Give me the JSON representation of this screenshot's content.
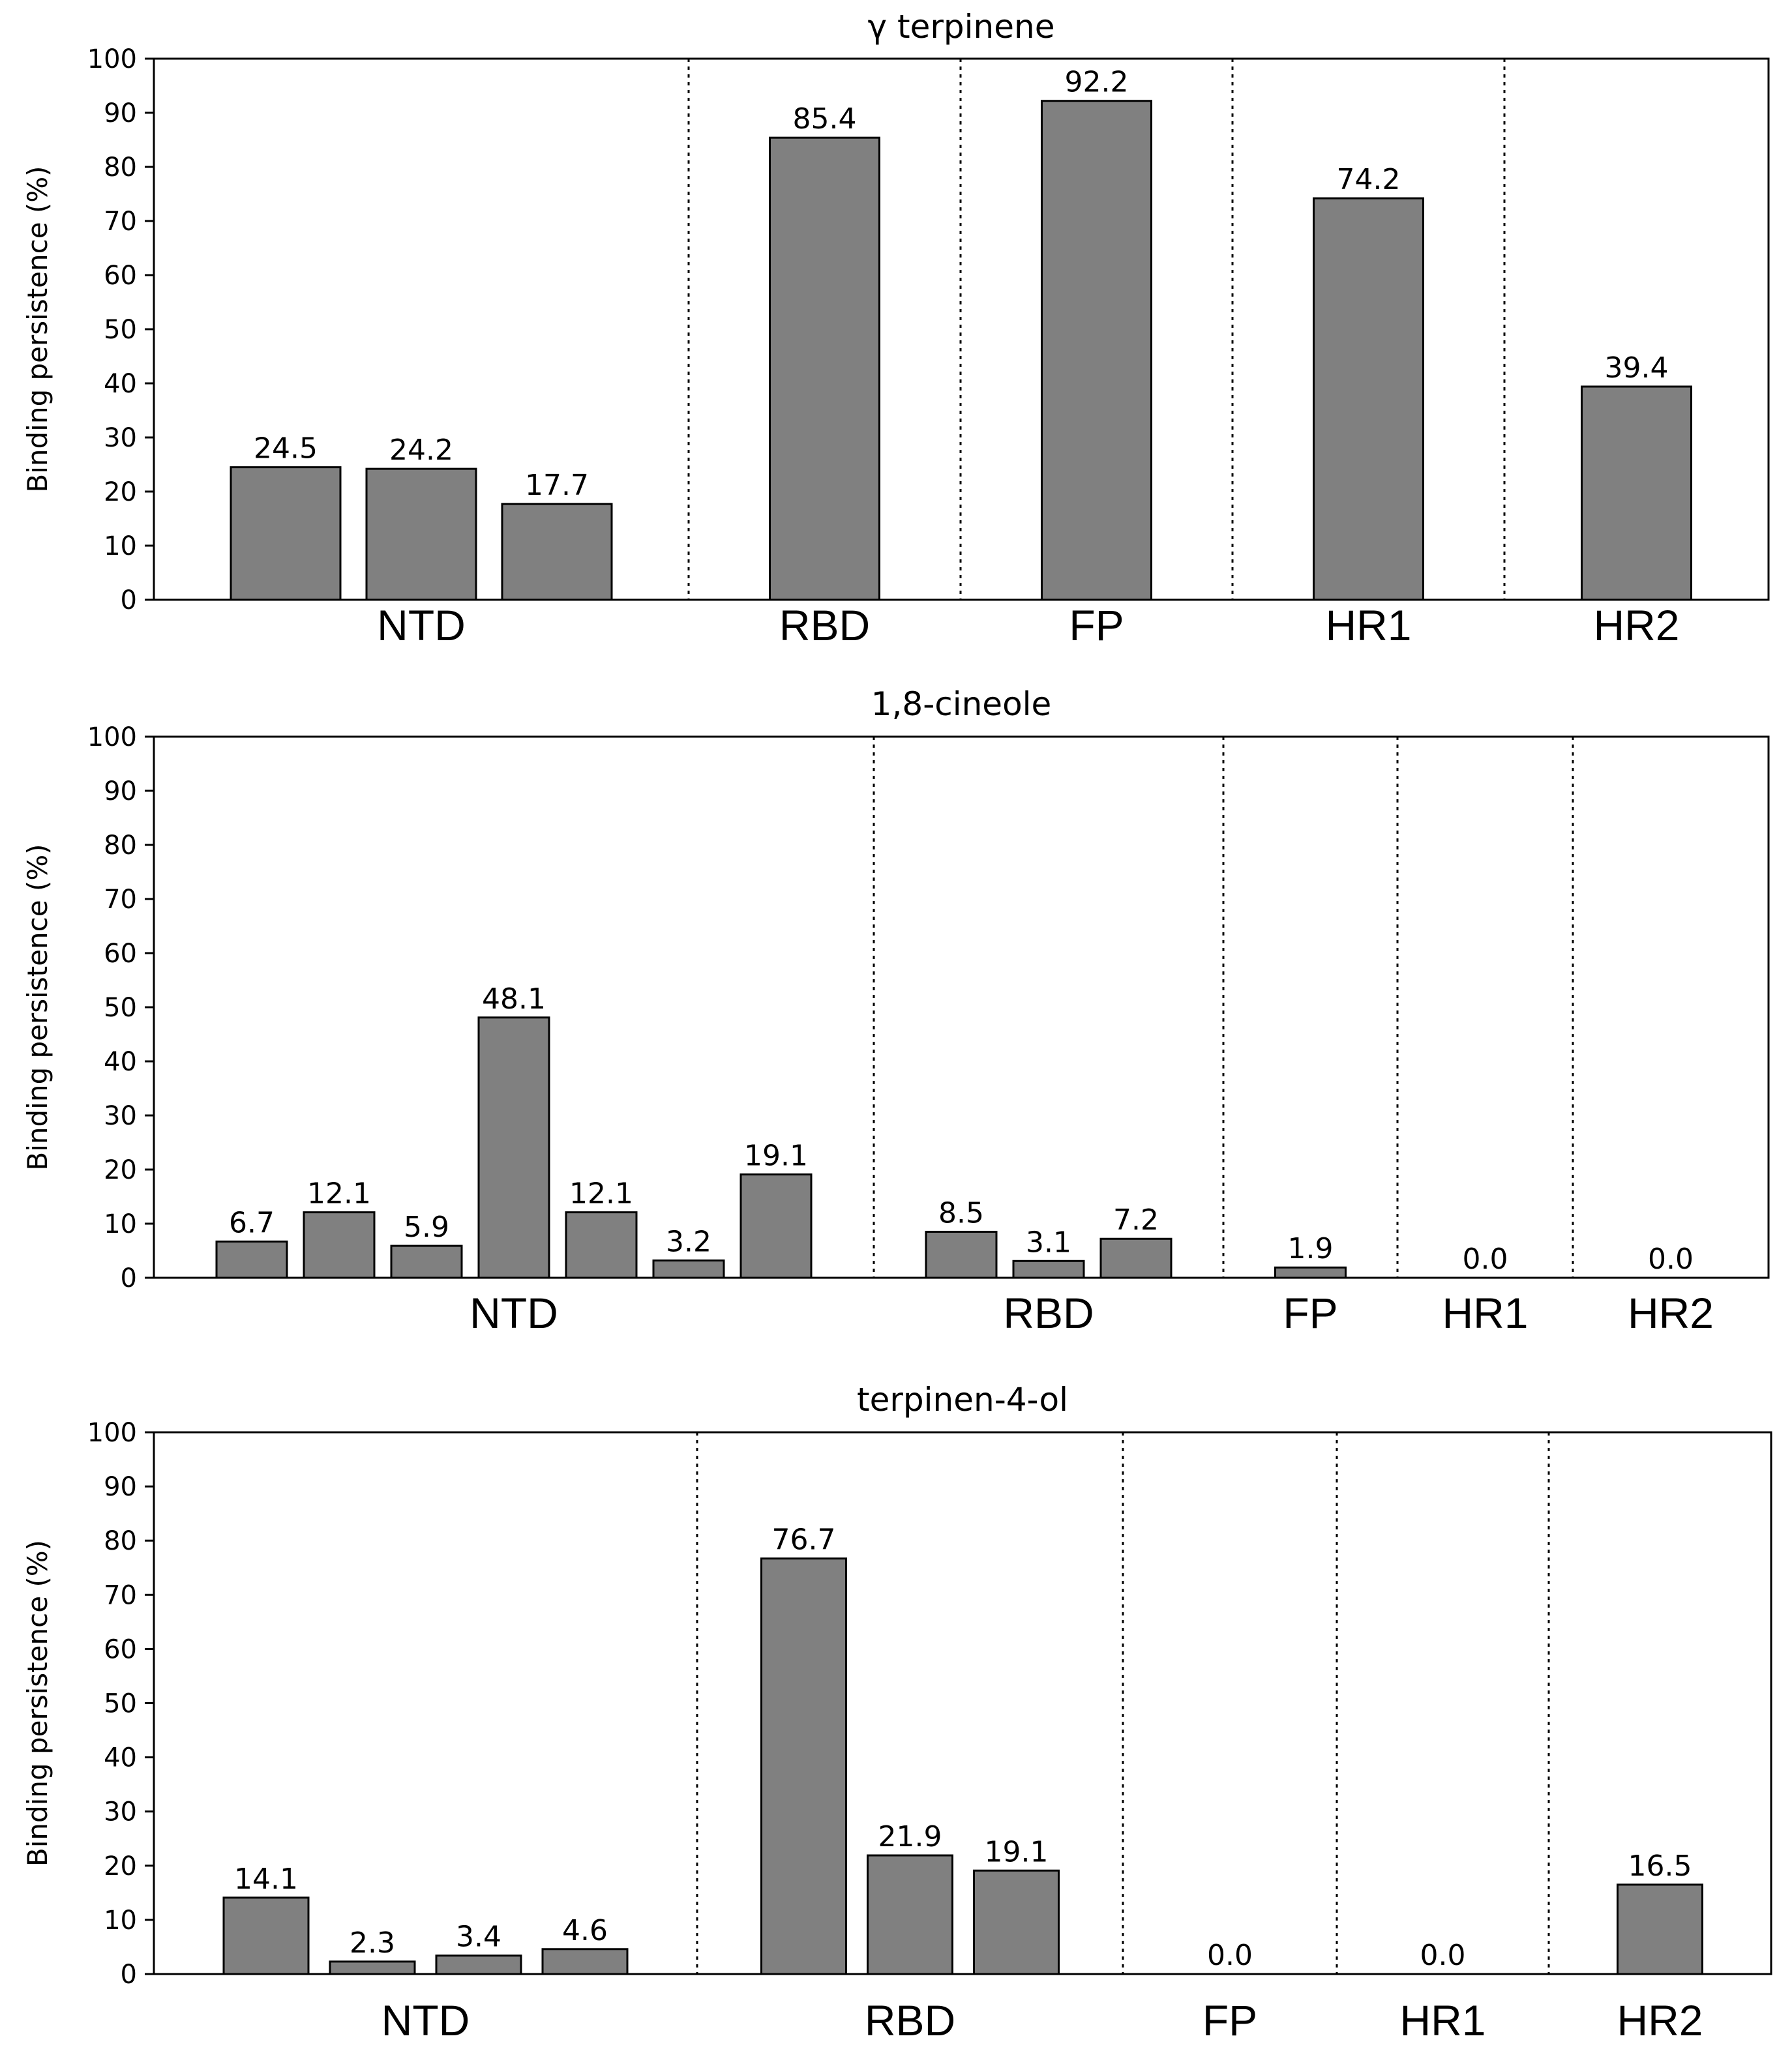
{
  "chart_data": [
    {
      "type": "bar",
      "title": "γ terpinene",
      "ylabel": "Binding persistence (%)",
      "xlabel": "",
      "ylim": [
        0,
        100
      ],
      "yticks": [
        0,
        10,
        20,
        30,
        40,
        50,
        60,
        70,
        80,
        90,
        100
      ],
      "groups": [
        {
          "label": "NTD",
          "values": [
            24.5,
            24.2,
            17.7
          ]
        },
        {
          "label": "RBD",
          "values": [
            85.4
          ]
        },
        {
          "label": "FP",
          "values": [
            92.2
          ]
        },
        {
          "label": "HR1",
          "values": [
            74.2
          ]
        },
        {
          "label": "HR2",
          "values": [
            39.4
          ]
        }
      ]
    },
    {
      "type": "bar",
      "title": "1,8-cineole",
      "ylabel": "Binding persistence (%)",
      "xlabel": "",
      "ylim": [
        0,
        100
      ],
      "yticks": [
        0,
        10,
        20,
        30,
        40,
        50,
        60,
        70,
        80,
        90,
        100
      ],
      "groups": [
        {
          "label": "NTD",
          "values": [
            6.7,
            12.1,
            5.9,
            48.1,
            12.1,
            3.2,
            19.1
          ]
        },
        {
          "label": "RBD",
          "values": [
            8.5,
            3.1,
            7.2
          ]
        },
        {
          "label": "FP",
          "values": [
            1.9
          ]
        },
        {
          "label": "HR1",
          "values": [
            0.0
          ]
        },
        {
          "label": "HR2",
          "values": [
            0.0
          ]
        }
      ]
    },
    {
      "type": "bar",
      "title": "terpinen-4-ol",
      "ylabel": "Binding persistence (%)",
      "xlabel": "",
      "ylim": [
        0,
        100
      ],
      "yticks": [
        0,
        10,
        20,
        30,
        40,
        50,
        60,
        70,
        80,
        90,
        100
      ],
      "groups": [
        {
          "label": "NTD",
          "values": [
            14.1,
            2.3,
            3.4,
            4.6
          ]
        },
        {
          "label": "RBD",
          "values": [
            76.7,
            21.9,
            19.1
          ]
        },
        {
          "label": "FP",
          "values": [
            0.0
          ]
        },
        {
          "label": "HR1",
          "values": [
            0.0
          ]
        },
        {
          "label": "HR2",
          "values": [
            16.5
          ]
        }
      ]
    }
  ]
}
